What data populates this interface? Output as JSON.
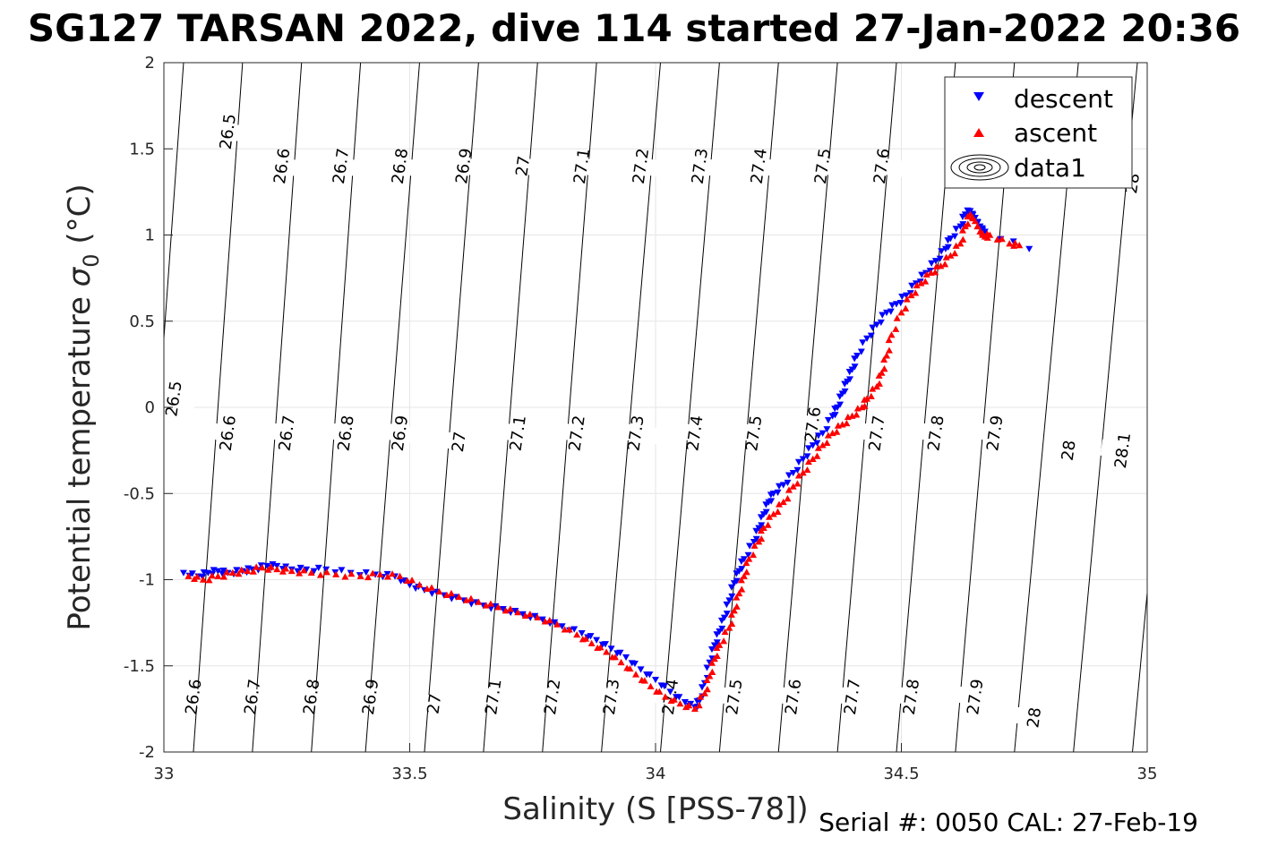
{
  "title": "SG127 TARSAN 2022, dive 114 started 27-Jan-2022 20:36",
  "footer": "Serial #: 0050  CAL: 27-Feb-19",
  "chart_data": {
    "type": "scatter",
    "xlabel": "Salinity (S [PSS-78])",
    "ylabel_main": "Potential temperature ",
    "ylabel_symbol": "σ",
    "ylabel_sub": "0",
    "ylabel_unit": " (°C)",
    "xlim": [
      33,
      35
    ],
    "ylim": [
      -2,
      2
    ],
    "x_ticks": [
      {
        "value": 33,
        "label": "33"
      },
      {
        "value": 33.5,
        "label": "33.5"
      },
      {
        "value": 34,
        "label": "34"
      },
      {
        "value": 34.5,
        "label": "34.5"
      },
      {
        "value": 35,
        "label": "35"
      }
    ],
    "y_ticks": [
      {
        "value": 2,
        "label": "2"
      },
      {
        "value": 1.5,
        "label": "1.5"
      },
      {
        "value": 1,
        "label": "1"
      },
      {
        "value": 0.5,
        "label": "0.5"
      },
      {
        "value": 0,
        "label": "0"
      },
      {
        "value": -0.5,
        "label": "-0.5"
      },
      {
        "value": -1,
        "label": "-1"
      },
      {
        "value": -1.5,
        "label": "-1.5"
      },
      {
        "value": -2,
        "label": "-2"
      }
    ],
    "grid": true,
    "legend": {
      "position": "top-right",
      "entries": [
        {
          "label": "descent",
          "marker": "triangle-down",
          "color": "#0000ff"
        },
        {
          "label": "ascent",
          "marker": "triangle-up",
          "color": "#ff0000"
        },
        {
          "label": "data1",
          "marker": "contour",
          "color": "#000000"
        }
      ]
    },
    "density_contours": {
      "label_text": [
        "26.5",
        "26.6",
        "26.7",
        "26.8",
        "26.9",
        "27",
        "27.1",
        "27.2",
        "27.3",
        "27.4",
        "27.5",
        "27.6",
        "27.7",
        "27.8",
        "27.9",
        "28",
        "28.1"
      ],
      "lines": [
        {
          "s_at_top": 33.04,
          "s_at_bottom": 32.94
        },
        {
          "s_at_top": 33.16,
          "s_at_bottom": 33.06
        },
        {
          "s_at_top": 33.28,
          "s_at_bottom": 33.18
        },
        {
          "s_at_top": 33.4,
          "s_at_bottom": 33.3
        },
        {
          "s_at_top": 33.52,
          "s_at_bottom": 33.41
        },
        {
          "s_at_top": 33.64,
          "s_at_bottom": 33.53
        },
        {
          "s_at_top": 33.76,
          "s_at_bottom": 33.65
        },
        {
          "s_at_top": 33.88,
          "s_at_bottom": 33.77
        },
        {
          "s_at_top": 34.01,
          "s_at_bottom": 33.89
        },
        {
          "s_at_top": 34.13,
          "s_at_bottom": 34.01
        },
        {
          "s_at_top": 34.25,
          "s_at_bottom": 34.13
        },
        {
          "s_at_top": 34.37,
          "s_at_bottom": 34.25
        },
        {
          "s_at_top": 34.49,
          "s_at_bottom": 34.37
        },
        {
          "s_at_top": 34.61,
          "s_at_bottom": 34.49
        },
        {
          "s_at_top": 34.73,
          "s_at_bottom": 34.61
        },
        {
          "s_at_top": 34.86,
          "s_at_bottom": 34.73
        },
        {
          "s_at_top": 34.98,
          "s_at_bottom": 34.85
        },
        {
          "s_at_top": 35.1,
          "s_at_bottom": 34.97
        }
      ],
      "labels": [
        {
          "text": "26.5",
          "s": 33.13,
          "t": 1.6
        },
        {
          "text": "26.6",
          "s": 33.24,
          "t": 1.4
        },
        {
          "text": "26.7",
          "s": 33.36,
          "t": 1.4
        },
        {
          "text": "26.8",
          "s": 33.48,
          "t": 1.4
        },
        {
          "text": "26.9",
          "s": 33.61,
          "t": 1.4
        },
        {
          "text": "27",
          "s": 33.73,
          "t": 1.4
        },
        {
          "text": "27.1",
          "s": 33.85,
          "t": 1.4
        },
        {
          "text": "27.2",
          "s": 33.97,
          "t": 1.4
        },
        {
          "text": "27.3",
          "s": 34.09,
          "t": 1.4
        },
        {
          "text": "27.4",
          "s": 34.21,
          "t": 1.4
        },
        {
          "text": "27.5",
          "s": 34.34,
          "t": 1.4
        },
        {
          "text": "27.6",
          "s": 34.46,
          "t": 1.4
        },
        {
          "text": "28",
          "s": 34.97,
          "t": 1.3
        },
        {
          "text": "26.5",
          "s": 33.02,
          "t": 0.05
        },
        {
          "text": "26.6",
          "s": 33.13,
          "t": -0.15
        },
        {
          "text": "26.7",
          "s": 33.25,
          "t": -0.15
        },
        {
          "text": "26.8",
          "s": 33.37,
          "t": -0.15
        },
        {
          "text": "26.9",
          "s": 33.48,
          "t": -0.15
        },
        {
          "text": "27",
          "s": 33.6,
          "t": -0.2
        },
        {
          "text": "27.1",
          "s": 33.72,
          "t": -0.15
        },
        {
          "text": "27.2",
          "s": 33.84,
          "t": -0.15
        },
        {
          "text": "27.3",
          "s": 33.96,
          "t": -0.15
        },
        {
          "text": "27.4",
          "s": 34.08,
          "t": -0.15
        },
        {
          "text": "27.5",
          "s": 34.2,
          "t": -0.15
        },
        {
          "text": "27.6",
          "s": 34.32,
          "t": -0.1
        },
        {
          "text": "27.7",
          "s": 34.45,
          "t": -0.15
        },
        {
          "text": "27.8",
          "s": 34.57,
          "t": -0.15
        },
        {
          "text": "27.9",
          "s": 34.69,
          "t": -0.15
        },
        {
          "text": "28",
          "s": 34.84,
          "t": -0.25
        },
        {
          "text": "28.1",
          "s": 34.95,
          "t": -0.25
        },
        {
          "text": "26.6",
          "s": 33.06,
          "t": -1.68
        },
        {
          "text": "26.7",
          "s": 33.18,
          "t": -1.68
        },
        {
          "text": "26.8",
          "s": 33.3,
          "t": -1.68
        },
        {
          "text": "26.9",
          "s": 33.42,
          "t": -1.68
        },
        {
          "text": "27",
          "s": 33.55,
          "t": -1.72
        },
        {
          "text": "27.1",
          "s": 33.67,
          "t": -1.68
        },
        {
          "text": "27.2",
          "s": 33.79,
          "t": -1.68
        },
        {
          "text": "27.3",
          "s": 33.91,
          "t": -1.68
        },
        {
          "text": "27.4",
          "s": 34.03,
          "t": -1.68
        },
        {
          "text": "27.5",
          "s": 34.16,
          "t": -1.68
        },
        {
          "text": "27.6",
          "s": 34.28,
          "t": -1.68
        },
        {
          "text": "27.7",
          "s": 34.4,
          "t": -1.68
        },
        {
          "text": "27.8",
          "s": 34.52,
          "t": -1.68
        },
        {
          "text": "27.9",
          "s": 34.65,
          "t": -1.68
        },
        {
          "text": "28",
          "s": 34.77,
          "t": -1.8
        }
      ]
    },
    "series": [
      {
        "name": "descent",
        "marker": "triangle-down",
        "color": "#0000ff",
        "points": [
          [
            33.04,
            -0.96
          ],
          [
            33.07,
            -0.98
          ],
          [
            33.09,
            -0.96
          ],
          [
            33.11,
            -0.95
          ],
          [
            33.13,
            -0.96
          ],
          [
            33.16,
            -0.95
          ],
          [
            33.18,
            -0.94
          ],
          [
            33.21,
            -0.92
          ],
          [
            33.23,
            -0.92
          ],
          [
            33.26,
            -0.94
          ],
          [
            33.29,
            -0.94
          ],
          [
            33.33,
            -0.94
          ],
          [
            33.38,
            -0.96
          ],
          [
            33.43,
            -0.97
          ],
          [
            33.47,
            -0.98
          ],
          [
            33.5,
            -1.03
          ],
          [
            33.53,
            -1.06
          ],
          [
            33.57,
            -1.09
          ],
          [
            33.61,
            -1.12
          ],
          [
            33.65,
            -1.15
          ],
          [
            33.69,
            -1.17
          ],
          [
            33.73,
            -1.2
          ],
          [
            33.77,
            -1.23
          ],
          [
            33.81,
            -1.27
          ],
          [
            33.85,
            -1.31
          ],
          [
            33.88,
            -1.35
          ],
          [
            33.91,
            -1.4
          ],
          [
            33.94,
            -1.45
          ],
          [
            33.97,
            -1.52
          ],
          [
            34.0,
            -1.58
          ],
          [
            34.03,
            -1.65
          ],
          [
            34.06,
            -1.71
          ],
          [
            34.08,
            -1.74
          ],
          [
            34.09,
            -1.7
          ],
          [
            34.1,
            -1.6
          ],
          [
            34.11,
            -1.48
          ],
          [
            34.12,
            -1.38
          ],
          [
            34.13,
            -1.3
          ],
          [
            34.14,
            -1.22
          ],
          [
            34.15,
            -1.12
          ],
          [
            34.16,
            -1.02
          ],
          [
            34.17,
            -0.95
          ],
          [
            34.18,
            -0.88
          ],
          [
            34.2,
            -0.78
          ],
          [
            34.21,
            -0.7
          ],
          [
            34.22,
            -0.62
          ],
          [
            34.23,
            -0.55
          ],
          [
            34.24,
            -0.5
          ],
          [
            34.26,
            -0.45
          ],
          [
            34.28,
            -0.38
          ],
          [
            34.3,
            -0.3
          ],
          [
            34.32,
            -0.22
          ],
          [
            34.34,
            -0.15
          ],
          [
            34.36,
            -0.05
          ],
          [
            34.37,
            0.0
          ],
          [
            34.38,
            0.08
          ],
          [
            34.39,
            0.15
          ],
          [
            34.4,
            0.22
          ],
          [
            34.41,
            0.3
          ],
          [
            34.43,
            0.4
          ],
          [
            34.45,
            0.48
          ],
          [
            34.47,
            0.55
          ],
          [
            34.49,
            0.6
          ],
          [
            34.51,
            0.65
          ],
          [
            34.53,
            0.72
          ],
          [
            34.55,
            0.78
          ],
          [
            34.57,
            0.85
          ],
          [
            34.59,
            0.92
          ],
          [
            34.6,
            0.98
          ],
          [
            34.62,
            1.05
          ],
          [
            34.63,
            1.12
          ],
          [
            34.64,
            1.14
          ],
          [
            34.65,
            1.1
          ],
          [
            34.66,
            1.05
          ],
          [
            34.67,
            1.02
          ],
          [
            34.76,
            0.92
          ]
        ]
      },
      {
        "name": "ascent",
        "marker": "triangle-up",
        "color": "#ff0000",
        "points": [
          [
            33.05,
            -0.98
          ],
          [
            33.08,
            -1.0
          ],
          [
            33.11,
            -0.98
          ],
          [
            33.14,
            -0.96
          ],
          [
            33.17,
            -0.95
          ],
          [
            33.2,
            -0.93
          ],
          [
            33.23,
            -0.94
          ],
          [
            33.26,
            -0.95
          ],
          [
            33.3,
            -0.96
          ],
          [
            33.35,
            -0.97
          ],
          [
            33.4,
            -0.98
          ],
          [
            33.44,
            -0.97
          ],
          [
            33.48,
            -0.98
          ],
          [
            33.52,
            -1.03
          ],
          [
            33.56,
            -1.07
          ],
          [
            33.6,
            -1.1
          ],
          [
            33.64,
            -1.13
          ],
          [
            33.68,
            -1.16
          ],
          [
            33.72,
            -1.19
          ],
          [
            33.76,
            -1.22
          ],
          [
            33.8,
            -1.26
          ],
          [
            33.84,
            -1.32
          ],
          [
            33.87,
            -1.37
          ],
          [
            33.9,
            -1.42
          ],
          [
            33.93,
            -1.48
          ],
          [
            33.96,
            -1.55
          ],
          [
            33.99,
            -1.62
          ],
          [
            34.02,
            -1.68
          ],
          [
            34.05,
            -1.72
          ],
          [
            34.08,
            -1.75
          ],
          [
            34.1,
            -1.66
          ],
          [
            34.11,
            -1.56
          ],
          [
            34.12,
            -1.46
          ],
          [
            34.13,
            -1.38
          ],
          [
            34.15,
            -1.28
          ],
          [
            34.16,
            -1.18
          ],
          [
            34.17,
            -1.08
          ],
          [
            34.18,
            -0.98
          ],
          [
            34.19,
            -0.88
          ],
          [
            34.21,
            -0.78
          ],
          [
            34.22,
            -0.7
          ],
          [
            34.24,
            -0.62
          ],
          [
            34.26,
            -0.55
          ],
          [
            34.28,
            -0.46
          ],
          [
            34.3,
            -0.38
          ],
          [
            34.32,
            -0.3
          ],
          [
            34.34,
            -0.22
          ],
          [
            34.36,
            -0.15
          ],
          [
            34.38,
            -0.1
          ],
          [
            34.4,
            -0.05
          ],
          [
            34.42,
            0.0
          ],
          [
            34.43,
            0.05
          ],
          [
            34.45,
            0.12
          ],
          [
            34.46,
            0.2
          ],
          [
            34.47,
            0.3
          ],
          [
            34.48,
            0.42
          ],
          [
            34.5,
            0.55
          ],
          [
            34.52,
            0.65
          ],
          [
            34.54,
            0.72
          ],
          [
            34.56,
            0.78
          ],
          [
            34.58,
            0.82
          ],
          [
            34.6,
            0.88
          ],
          [
            34.62,
            0.95
          ],
          [
            34.63,
            1.05
          ],
          [
            34.64,
            1.12
          ],
          [
            34.65,
            1.08
          ],
          [
            34.66,
            1.02
          ],
          [
            34.67,
            0.99
          ],
          [
            34.68,
            1.0
          ],
          [
            34.72,
            0.95
          ],
          [
            34.74,
            0.94
          ]
        ]
      }
    ]
  }
}
